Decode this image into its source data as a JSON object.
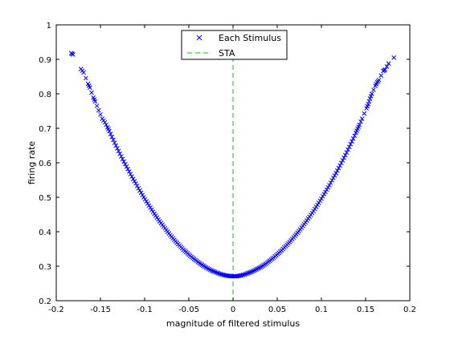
{
  "chart_data": {
    "type": "scatter",
    "xlabel": "magnitude of filtered stimulus",
    "ylabel": "firing rate",
    "xlim": [
      -0.2,
      0.2
    ],
    "ylim": [
      0.2,
      1.0
    ],
    "xticks": [
      -0.2,
      -0.15,
      -0.1,
      -0.05,
      0,
      0.05,
      0.1,
      0.15,
      0.2
    ],
    "xtick_labels": [
      "-0.2",
      "-0.15",
      "-0.1",
      "-0.05",
      "0",
      "0.05",
      "0.1",
      "0.15",
      "0.2"
    ],
    "yticks": [
      0.2,
      0.3,
      0.4,
      0.5,
      0.6,
      0.7,
      0.8,
      0.9,
      1.0
    ],
    "ytick_labels": [
      "0.2",
      "0.3",
      "0.4",
      "0.5",
      "0.6",
      "0.7",
      "0.8",
      "0.9",
      "1"
    ],
    "grid": false,
    "legend_position": "top-center",
    "series": [
      {
        "name": "Each Stimulus",
        "marker": "x",
        "color": "#0000ff",
        "points": [
          [
            -0.183,
            0.918
          ],
          [
            -0.181,
            0.914
          ],
          [
            -0.172,
            0.872
          ],
          [
            -0.169,
            0.862
          ],
          [
            -0.164,
            0.829
          ],
          [
            -0.162,
            0.818
          ],
          [
            -0.158,
            0.789
          ],
          [
            -0.156,
            0.778
          ],
          [
            -0.152,
            0.752
          ],
          [
            -0.148,
            0.728
          ],
          [
            -0.145,
            0.717
          ],
          [
            -0.142,
            0.703
          ],
          [
            -0.14,
            0.692
          ],
          [
            -0.137,
            0.675
          ],
          [
            -0.134,
            0.658
          ],
          [
            -0.131,
            0.642
          ],
          [
            -0.128,
            0.626
          ],
          [
            -0.125,
            0.611
          ],
          [
            -0.122,
            0.596
          ],
          [
            -0.119,
            0.582
          ],
          [
            -0.116,
            0.567
          ],
          [
            -0.113,
            0.553
          ],
          [
            -0.11,
            0.54
          ],
          [
            -0.107,
            0.526
          ],
          [
            -0.104,
            0.513
          ],
          [
            -0.101,
            0.5
          ],
          [
            -0.098,
            0.488
          ],
          [
            -0.095,
            0.476
          ],
          [
            -0.092,
            0.464
          ],
          [
            -0.089,
            0.452
          ],
          [
            -0.086,
            0.441
          ],
          [
            -0.083,
            0.43
          ],
          [
            -0.08,
            0.42
          ],
          [
            -0.077,
            0.41
          ],
          [
            -0.074,
            0.4
          ],
          [
            -0.071,
            0.39
          ],
          [
            -0.068,
            0.381
          ],
          [
            -0.065,
            0.372
          ],
          [
            -0.062,
            0.364
          ],
          [
            -0.059,
            0.356
          ],
          [
            -0.056,
            0.348
          ],
          [
            -0.053,
            0.341
          ],
          [
            -0.05,
            0.334
          ],
          [
            -0.047,
            0.327
          ],
          [
            -0.044,
            0.321
          ],
          [
            -0.041,
            0.315
          ],
          [
            -0.038,
            0.309
          ],
          [
            -0.035,
            0.304
          ],
          [
            -0.032,
            0.299
          ],
          [
            -0.029,
            0.294
          ],
          [
            -0.026,
            0.29
          ],
          [
            -0.023,
            0.286
          ],
          [
            -0.02,
            0.283
          ],
          [
            -0.017,
            0.28
          ],
          [
            -0.014,
            0.277
          ],
          [
            -0.011,
            0.275
          ],
          [
            -0.008,
            0.273
          ],
          [
            -0.005,
            0.272
          ],
          [
            -0.002,
            0.271
          ],
          [
            0.001,
            0.271
          ],
          [
            0.004,
            0.271
          ],
          [
            0.007,
            0.272
          ],
          [
            0.01,
            0.274
          ],
          [
            0.013,
            0.276
          ],
          [
            0.016,
            0.279
          ],
          [
            0.019,
            0.282
          ],
          [
            0.022,
            0.285
          ],
          [
            0.025,
            0.289
          ],
          [
            0.028,
            0.293
          ],
          [
            0.031,
            0.297
          ],
          [
            0.034,
            0.302
          ],
          [
            0.037,
            0.307
          ],
          [
            0.04,
            0.313
          ],
          [
            0.043,
            0.319
          ],
          [
            0.046,
            0.325
          ],
          [
            0.049,
            0.332
          ],
          [
            0.052,
            0.339
          ],
          [
            0.055,
            0.346
          ],
          [
            0.058,
            0.354
          ],
          [
            0.061,
            0.362
          ],
          [
            0.064,
            0.37
          ],
          [
            0.067,
            0.379
          ],
          [
            0.07,
            0.388
          ],
          [
            0.073,
            0.397
          ],
          [
            0.076,
            0.407
          ],
          [
            0.079,
            0.417
          ],
          [
            0.082,
            0.427
          ],
          [
            0.085,
            0.438
          ],
          [
            0.088,
            0.449
          ],
          [
            0.091,
            0.46
          ],
          [
            0.094,
            0.472
          ],
          [
            0.097,
            0.484
          ],
          [
            0.1,
            0.496
          ],
          [
            0.103,
            0.509
          ],
          [
            0.106,
            0.522
          ],
          [
            0.109,
            0.535
          ],
          [
            0.112,
            0.549
          ],
          [
            0.115,
            0.563
          ],
          [
            0.118,
            0.577
          ],
          [
            0.121,
            0.592
          ],
          [
            0.124,
            0.607
          ],
          [
            0.127,
            0.622
          ],
          [
            0.13,
            0.638
          ],
          [
            0.133,
            0.654
          ],
          [
            0.136,
            0.67
          ],
          [
            0.139,
            0.687
          ],
          [
            0.141,
            0.699
          ],
          [
            0.143,
            0.71
          ],
          [
            0.146,
            0.728
          ],
          [
            0.151,
            0.758
          ],
          [
            0.153,
            0.77
          ],
          [
            0.155,
            0.786
          ],
          [
            0.157,
            0.8
          ],
          [
            0.161,
            0.823
          ],
          [
            0.163,
            0.833
          ],
          [
            0.165,
            0.84
          ],
          [
            0.17,
            0.866
          ],
          [
            0.172,
            0.87
          ],
          [
            0.176,
            0.888
          ],
          [
            0.182,
            0.905
          ]
        ]
      },
      {
        "name": "STA",
        "style": "dashed",
        "color": "#00cc00",
        "x": 0
      }
    ]
  }
}
